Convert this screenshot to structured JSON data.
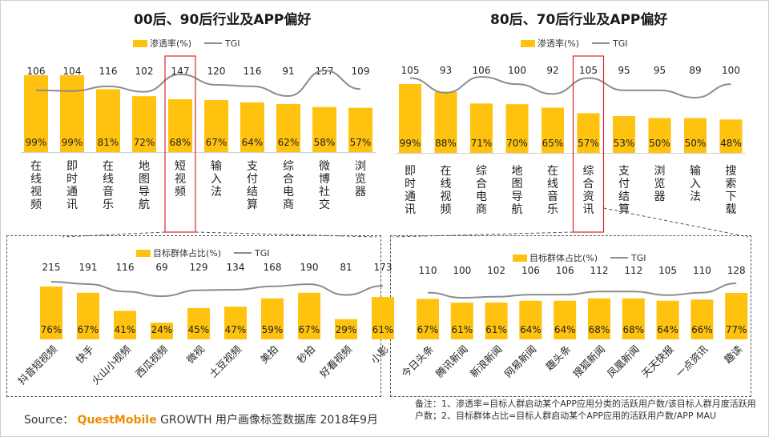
{
  "source": {
    "prefix": "Source：",
    "brand": "QuestMobile",
    "rest": " GROWTH 用户画像标签数据库 2018年9月"
  },
  "note": "备注：1、渗透率=目标人群启动某个APP应用分类的活跃用户数/该目标人群月度活跃用户数；2、目标群体占比=目标人群启动某个APP应用的活跃用户数/APP MAU",
  "colors": {
    "bar": "#FFC20E",
    "tgi": "#8C8C8C",
    "highlight": "#D9262C"
  },
  "chart_data": [
    {
      "type": "bar",
      "title": "00后、90后行业及APP偏好",
      "legend": {
        "bar": "渗透率(%)",
        "line": "TGI"
      },
      "categories": [
        "在线视频",
        "即时通讯",
        "在线音乐",
        "地图导航",
        "短视频",
        "输入法",
        "支付结算",
        "综合电商",
        "微博社交",
        "浏览器"
      ],
      "series": [
        {
          "name": "渗透率(%)",
          "values": [
            99,
            99,
            81,
            72,
            68,
            67,
            64,
            62,
            58,
            57
          ],
          "labels": [
            "99%",
            "99%",
            "81%",
            "72%",
            "68%",
            "67%",
            "64%",
            "62%",
            "58%",
            "57%"
          ]
        },
        {
          "name": "TGI",
          "type": "line",
          "values": [
            106,
            104,
            116,
            102,
            147,
            120,
            116,
            91,
            157,
            109
          ]
        }
      ],
      "highlight_index": 4
    },
    {
      "type": "bar",
      "title": "80后、70后行业及APP偏好",
      "legend": {
        "bar": "渗透率(%)",
        "line": "TGI"
      },
      "categories": [
        "即时通讯",
        "在线视频",
        "综合电商",
        "地图导航",
        "在线音乐",
        "综合资讯",
        "支付结算",
        "浏览器",
        "输入法",
        "搜索下载"
      ],
      "series": [
        {
          "name": "渗透率(%)",
          "values": [
            99,
            88,
            71,
            70,
            65,
            57,
            53,
            50,
            50,
            48
          ],
          "labels": [
            "99%",
            "88%",
            "71%",
            "70%",
            "65%",
            "57%",
            "53%",
            "50%",
            "50%",
            "48%"
          ]
        },
        {
          "name": "TGI",
          "type": "line",
          "values": [
            105,
            93,
            106,
            100,
            92,
            105,
            95,
            95,
            89,
            100
          ]
        }
      ],
      "highlight_index": 5
    },
    {
      "type": "bar",
      "legend": {
        "bar": "目标群体占比(%)",
        "line": "TGI"
      },
      "categories": [
        "抖音短视频",
        "快手",
        "火山小视频",
        "西瓜视频",
        "微视",
        "土豆视频",
        "美拍",
        "秒拍",
        "好看视频",
        "小影"
      ],
      "series": [
        {
          "name": "目标群体占比(%)",
          "values": [
            76,
            67,
            41,
            24,
            45,
            47,
            59,
            67,
            29,
            61
          ],
          "labels": [
            "76%",
            "67%",
            "41%",
            "24%",
            "45%",
            "47%",
            "59%",
            "67%",
            "29%",
            "61%"
          ]
        },
        {
          "name": "TGI",
          "type": "line",
          "values": [
            215,
            191,
            116,
            69,
            129,
            134,
            168,
            190,
            81,
            173
          ]
        }
      ]
    },
    {
      "type": "bar",
      "legend": {
        "bar": "目标群体占比(%)",
        "line": "TGI"
      },
      "categories": [
        "今日头条",
        "腾讯新闻",
        "新浪新闻",
        "网易新闻",
        "趣头条",
        "搜狐新闻",
        "凤凰新闻",
        "天天快报",
        "一点资讯",
        "趣读"
      ],
      "series": [
        {
          "name": "目标群体占比(%)",
          "values": [
            67,
            61,
            61,
            64,
            64,
            68,
            68,
            64,
            66,
            77
          ],
          "labels": [
            "67%",
            "61%",
            "61%",
            "64%",
            "64%",
            "68%",
            "68%",
            "64%",
            "66%",
            "77%"
          ]
        },
        {
          "name": "TGI",
          "type": "line",
          "values": [
            110,
            100,
            102,
            106,
            106,
            112,
            112,
            105,
            110,
            128
          ]
        }
      ]
    }
  ]
}
